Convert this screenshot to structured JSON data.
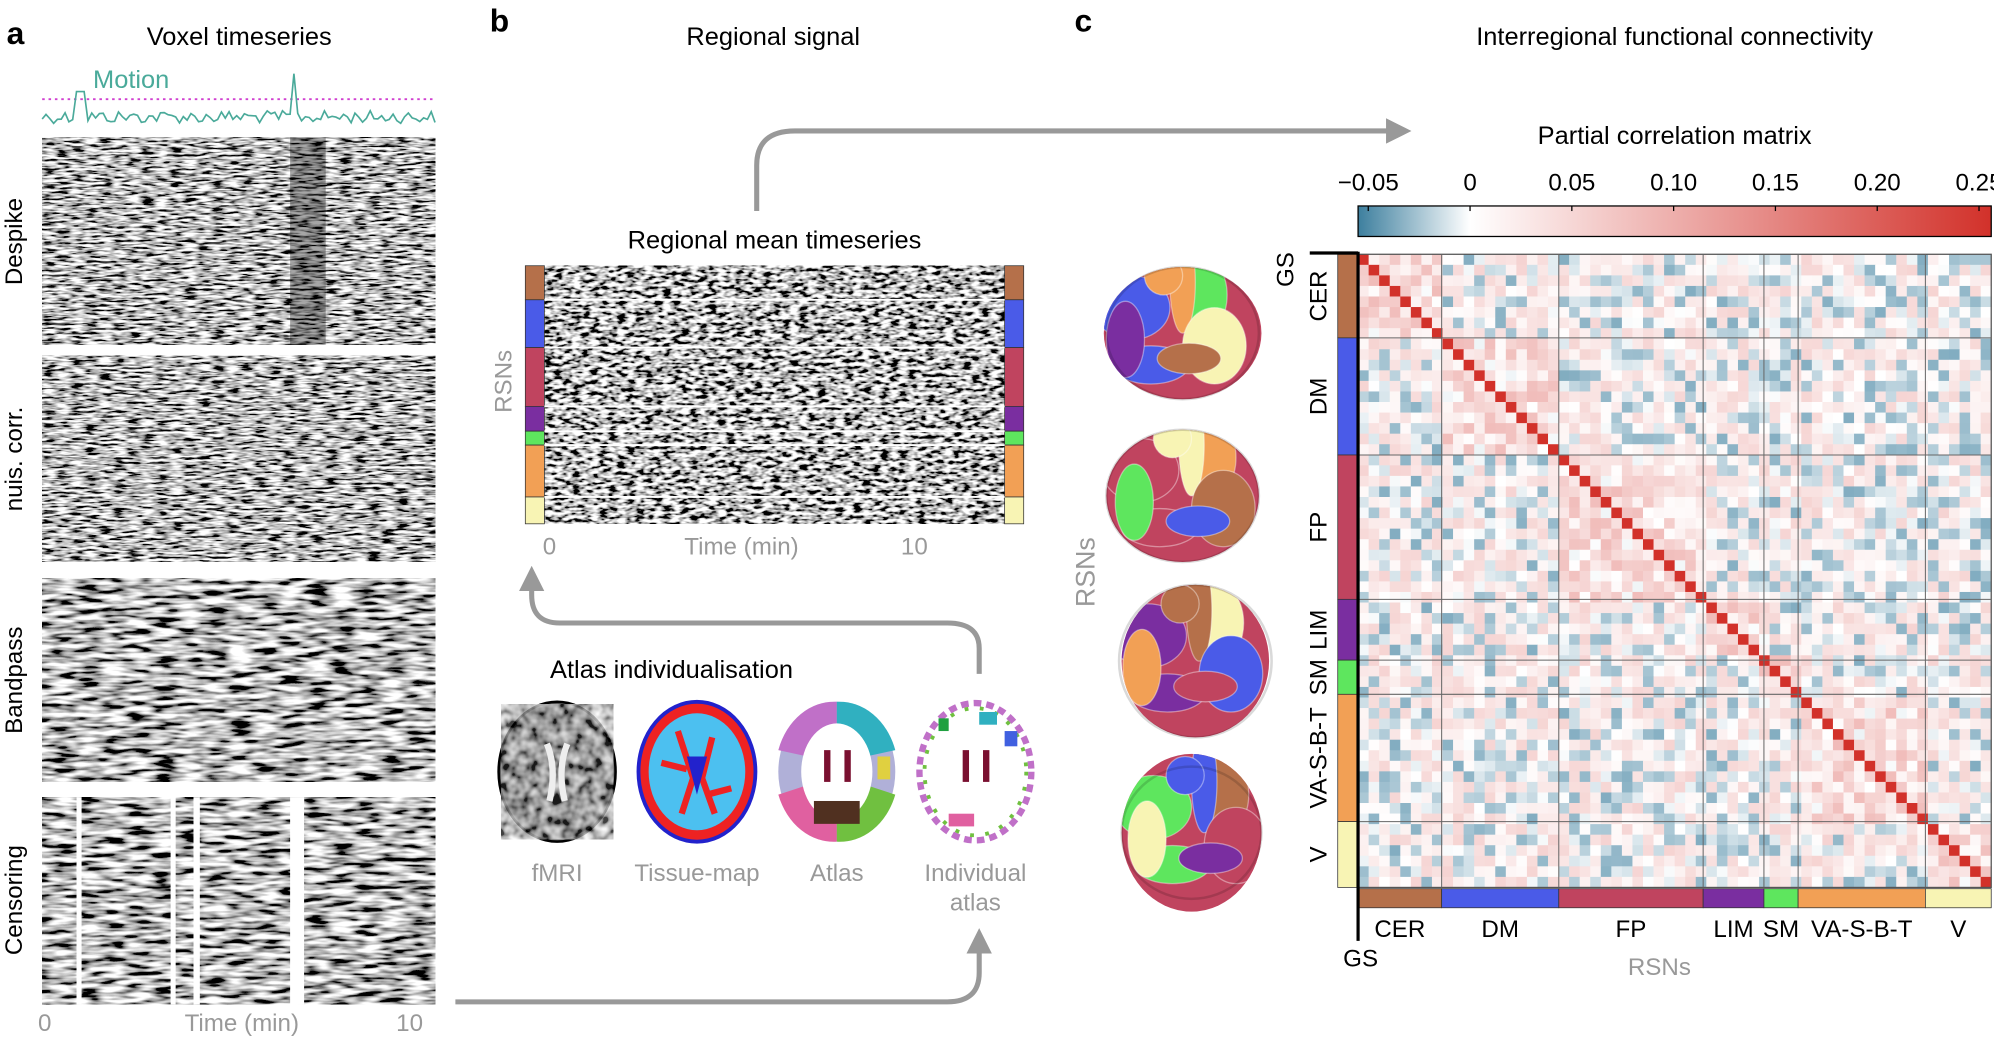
{
  "panel_a": {
    "letter": "a",
    "title": "Voxel timeseries",
    "motion": "Motion",
    "rows": [
      "Despike",
      "nuis. corr.",
      "Bandpass",
      "Censoring"
    ],
    "x_ticks": [
      "0",
      "10"
    ],
    "x_label": "Time (min)"
  },
  "panel_b": {
    "letter": "b",
    "title": "Regional signal",
    "timeseries_title": "Regional mean timeseries",
    "y_label": "RSNs",
    "x_ticks": [
      "0",
      "10"
    ],
    "x_label": "Time (min)",
    "atlas_title": "Atlas individualisation",
    "atlas_images": [
      [
        "fMRI"
      ],
      [
        "Tissue-map"
      ],
      [
        "Atlas"
      ],
      [
        "Individual",
        "atlas"
      ]
    ]
  },
  "panel_c": {
    "letter": "c",
    "title": "Interregional functional connectivity",
    "brains_label": "RSNs",
    "matrix_title": "Partial correlation matrix",
    "colorbar": {
      "lim": [
        -0.055,
        0.256
      ],
      "ticks": [
        {
          "value": -0.05,
          "label": "−0.05"
        },
        0,
        0.05,
        {
          "value": 0.1,
          "label": "0.10"
        },
        0.15,
        {
          "value": 0.2,
          "label": "0.20"
        },
        0.25
      ]
    },
    "gs_label": "GS",
    "networks": [
      {
        "name": "CER",
        "color": "#b5704a"
      },
      {
        "name": "DM",
        "color": "#4a5be8"
      },
      {
        "name": "FP",
        "color": "#c0445f"
      },
      {
        "name": "LIM",
        "color": "#7a2ea0"
      },
      {
        "name": "SM",
        "color": "#5ee65e"
      },
      {
        "name": "VA-S-B-T",
        "color": "#f2a055"
      },
      {
        "name": "V",
        "color": "#f8f4b4"
      }
    ],
    "x_label": "RSNs"
  }
}
